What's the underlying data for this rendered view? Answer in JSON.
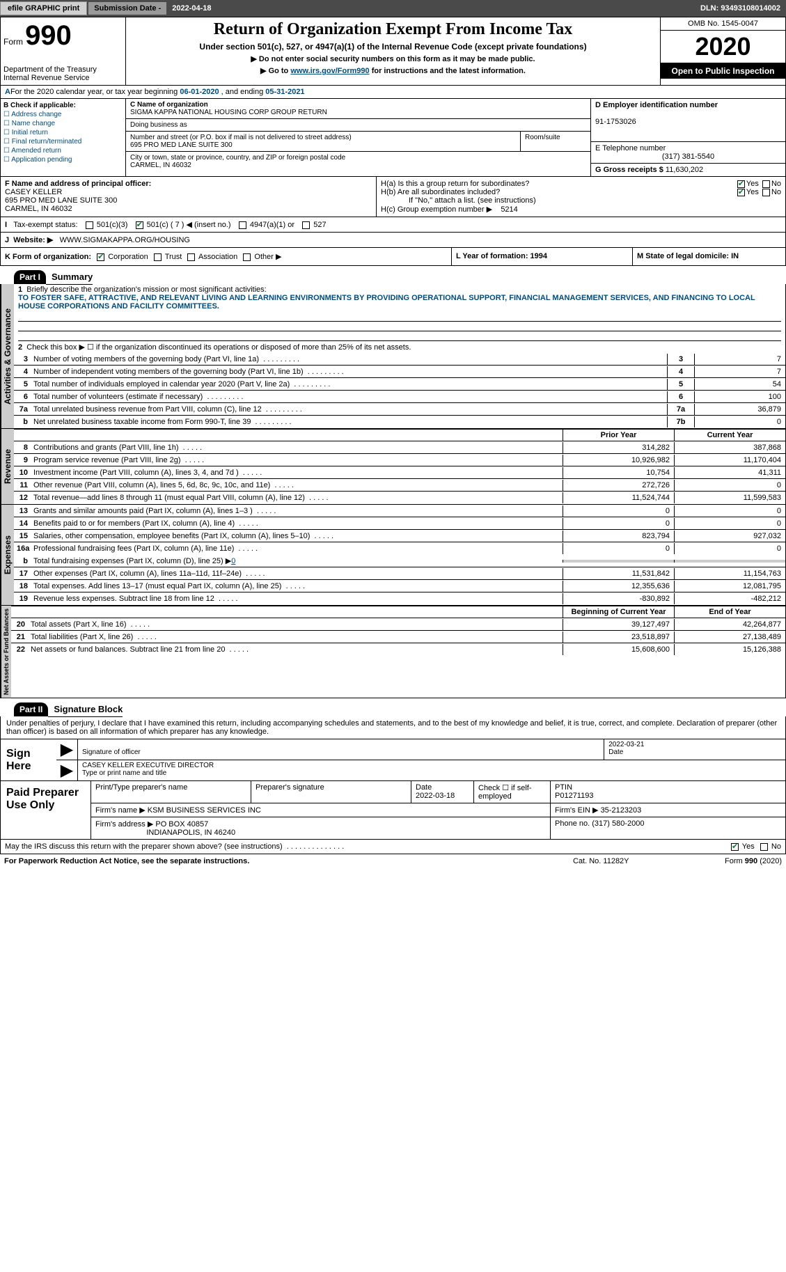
{
  "topbar": {
    "efile": "efile GRAPHIC print",
    "sub_label": "Submission Date -",
    "sub_date": "2022-04-18",
    "dln_label": "DLN:",
    "dln": "93493108014002"
  },
  "header": {
    "form_label": "Form",
    "form_no": "990",
    "dept": "Department of the Treasury\nInternal Revenue Service",
    "title": "Return of Organization Exempt From Income Tax",
    "subtitle": "Under section 501(c), 527, or 4947(a)(1) of the Internal Revenue Code (except private foundations)",
    "inst1": "▶ Do not enter social security numbers on this form as it may be made public.",
    "inst2_pre": "▶ Go to ",
    "inst2_link": "www.irs.gov/Form990",
    "inst2_post": " for instructions and the latest information.",
    "omb": "OMB No. 1545-0047",
    "year": "2020",
    "otp": "Open to Public Inspection"
  },
  "line_a": {
    "text_pre": "For the 2020 calendar year, or tax year beginning ",
    "begin": "06-01-2020",
    "mid": " , and ending ",
    "end": "05-31-2021"
  },
  "col_b": {
    "label": "B Check if applicable:",
    "opts": [
      "Address change",
      "Name change",
      "Initial return",
      "Final return/terminated",
      "Amended return",
      "Application pending"
    ]
  },
  "col_c": {
    "name_label": "C Name of organization",
    "name": "SIGMA KAPPA NATIONAL HOUSING CORP GROUP RETURN",
    "dba_label": "Doing business as",
    "addr_label": "Number and street (or P.O. box if mail is not delivered to street address)",
    "addr": "695 PRO MED LANE SUITE 300",
    "room_label": "Room/suite",
    "city_label": "City or town, state or province, country, and ZIP or foreign postal code",
    "city": "CARMEL, IN  46032"
  },
  "col_d": {
    "d_label": "D Employer identification number",
    "ein": "91-1753026",
    "e_label": "E Telephone number",
    "phone": "(317) 381-5540",
    "g_label": "G Gross receipts $",
    "gross": "11,630,202"
  },
  "fgh": {
    "f_label": "F Name and address of principal officer:",
    "f_name": "CASEY KELLER",
    "f_addr1": "695 PRO MED LANE SUITE 300",
    "f_addr2": "CARMEL, IN  46032",
    "ha": "H(a)  Is this a group return for subordinates?",
    "hb": "H(b)  Are all subordinates included?",
    "hb_note": "If \"No,\" attach a list. (see instructions)",
    "hc": "H(c)  Group exemption number ▶",
    "hc_val": "5214"
  },
  "row_i": {
    "label": "Tax-exempt status:",
    "opts": [
      "501(c)(3)",
      "501(c) ( 7 ) ◀ (insert no.)",
      "4947(a)(1) or",
      "527"
    ]
  },
  "row_j": {
    "label": "Website: ▶",
    "val": "WWW.SIGMAKAPPA.ORG/HOUSING"
  },
  "row_k": {
    "k_label": "K Form of organization:",
    "opts": [
      "Corporation",
      "Trust",
      "Association",
      "Other ▶"
    ],
    "l": "L Year of formation: 1994",
    "m": "M State of legal domicile: IN"
  },
  "part1": {
    "hdr": "Part I",
    "title": "Summary"
  },
  "mission": {
    "num": "1",
    "label": "Briefly describe the organization's mission or most significant activities:",
    "text": "TO FOSTER SAFE, ATTRACTIVE, AND RELEVANT LIVING AND LEARNING ENVIRONMENTS BY PROVIDING OPERATIONAL SUPPORT, FINANCIAL MANAGEMENT SERVICES, AND FINANCING TO LOCAL HOUSE CORPORATIONS AND FACILITY COMMITTEES."
  },
  "gov": {
    "tab": "Activities & Governance",
    "l2": "Check this box ▶ ☐ if the organization discontinued its operations or disposed of more than 25% of its net assets.",
    "lines": [
      {
        "n": "3",
        "t": "Number of voting members of the governing body (Part VI, line 1a)",
        "c": "3",
        "v": "7"
      },
      {
        "n": "4",
        "t": "Number of independent voting members of the governing body (Part VI, line 1b)",
        "c": "4",
        "v": "7"
      },
      {
        "n": "5",
        "t": "Total number of individuals employed in calendar year 2020 (Part V, line 2a)",
        "c": "5",
        "v": "54"
      },
      {
        "n": "6",
        "t": "Total number of volunteers (estimate if necessary)",
        "c": "6",
        "v": "100"
      },
      {
        "n": "7a",
        "t": "Total unrelated business revenue from Part VIII, column (C), line 12",
        "c": "7a",
        "v": "36,879"
      },
      {
        "n": "b",
        "t": "Net unrelated business taxable income from Form 990-T, line 39",
        "c": "7b",
        "v": "0"
      }
    ]
  },
  "rev": {
    "tab": "Revenue",
    "py_hdr": "Prior Year",
    "cy_hdr": "Current Year",
    "lines": [
      {
        "n": "8",
        "t": "Contributions and grants (Part VIII, line 1h)",
        "py": "314,282",
        "cy": "387,868"
      },
      {
        "n": "9",
        "t": "Program service revenue (Part VIII, line 2g)",
        "py": "10,926,982",
        "cy": "11,170,404"
      },
      {
        "n": "10",
        "t": "Investment income (Part VIII, column (A), lines 3, 4, and 7d )",
        "py": "10,754",
        "cy": "41,311"
      },
      {
        "n": "11",
        "t": "Other revenue (Part VIII, column (A), lines 5, 6d, 8c, 9c, 10c, and 11e)",
        "py": "272,726",
        "cy": "0"
      },
      {
        "n": "12",
        "t": "Total revenue—add lines 8 through 11 (must equal Part VIII, column (A), line 12)",
        "py": "11,524,744",
        "cy": "11,599,583"
      }
    ]
  },
  "exp": {
    "tab": "Expenses",
    "lines": [
      {
        "n": "13",
        "t": "Grants and similar amounts paid (Part IX, column (A), lines 1–3 )",
        "py": "0",
        "cy": "0"
      },
      {
        "n": "14",
        "t": "Benefits paid to or for members (Part IX, column (A), line 4)",
        "py": "0",
        "cy": "0"
      },
      {
        "n": "15",
        "t": "Salaries, other compensation, employee benefits (Part IX, column (A), lines 5–10)",
        "py": "823,794",
        "cy": "927,032"
      },
      {
        "n": "16a",
        "t": "Professional fundraising fees (Part IX, column (A), line 11e)",
        "py": "0",
        "cy": "0"
      }
    ],
    "l16b_n": "b",
    "l16b": "Total fundraising expenses (Part IX, column (D), line 25) ▶",
    "l16b_v": "0",
    "lines2": [
      {
        "n": "17",
        "t": "Other expenses (Part IX, column (A), lines 11a–11d, 11f–24e)",
        "py": "11,531,842",
        "cy": "11,154,763"
      },
      {
        "n": "18",
        "t": "Total expenses. Add lines 13–17 (must equal Part IX, column (A), line 25)",
        "py": "12,355,636",
        "cy": "12,081,795"
      },
      {
        "n": "19",
        "t": "Revenue less expenses. Subtract line 18 from line 12",
        "py": "-830,892",
        "cy": "-482,212"
      }
    ]
  },
  "bal": {
    "tab": "Net Assets or Fund Balances",
    "py_hdr": "Beginning of Current Year",
    "cy_hdr": "End of Year",
    "lines": [
      {
        "n": "20",
        "t": "Total assets (Part X, line 16)",
        "py": "39,127,497",
        "cy": "42,264,877"
      },
      {
        "n": "21",
        "t": "Total liabilities (Part X, line 26)",
        "py": "23,518,897",
        "cy": "27,138,489"
      },
      {
        "n": "22",
        "t": "Net assets or fund balances. Subtract line 21 from line 20",
        "py": "15,608,600",
        "cy": "15,126,388"
      }
    ]
  },
  "part2": {
    "hdr": "Part II",
    "title": "Signature Block"
  },
  "decl": "Under penalties of perjury, I declare that I have examined this return, including accompanying schedules and statements, and to the best of my knowledge and belief, it is true, correct, and complete. Declaration of preparer (other than officer) is based on all information of which preparer has any knowledge.",
  "sign": {
    "label": "Sign Here",
    "sig_lbl": "Signature of officer",
    "date_lbl": "Date",
    "date": "2022-03-21",
    "name": "CASEY KELLER  EXECUTIVE DIRECTOR",
    "name_lbl": "Type or print name and title"
  },
  "prep": {
    "label": "Paid Preparer Use Only",
    "c1": "Print/Type preparer's name",
    "c2": "Preparer's signature",
    "c3_lbl": "Date",
    "c3": "2022-03-18",
    "c4": "Check ☐ if self-employed",
    "c5_lbl": "PTIN",
    "c5": "P01271193",
    "firm_lbl": "Firm's name    ▶",
    "firm": "KSM BUSINESS SERVICES INC",
    "ein_lbl": "Firm's EIN ▶",
    "ein": "35-2123203",
    "addr_lbl": "Firm's address ▶",
    "addr1": "PO BOX 40857",
    "addr2": "INDIANAPOLIS, IN  46240",
    "phone_lbl": "Phone no.",
    "phone": "(317) 580-2000"
  },
  "discuss": "May the IRS discuss this return with the preparer shown above? (see instructions)",
  "footer": {
    "l": "For Paperwork Reduction Act Notice, see the separate instructions.",
    "c": "Cat. No. 11282Y",
    "r": "Form 990 (2020)"
  },
  "colors": {
    "link": "#004b7a",
    "check": "#0a7a3a",
    "topbar": "#4a4a4a"
  }
}
